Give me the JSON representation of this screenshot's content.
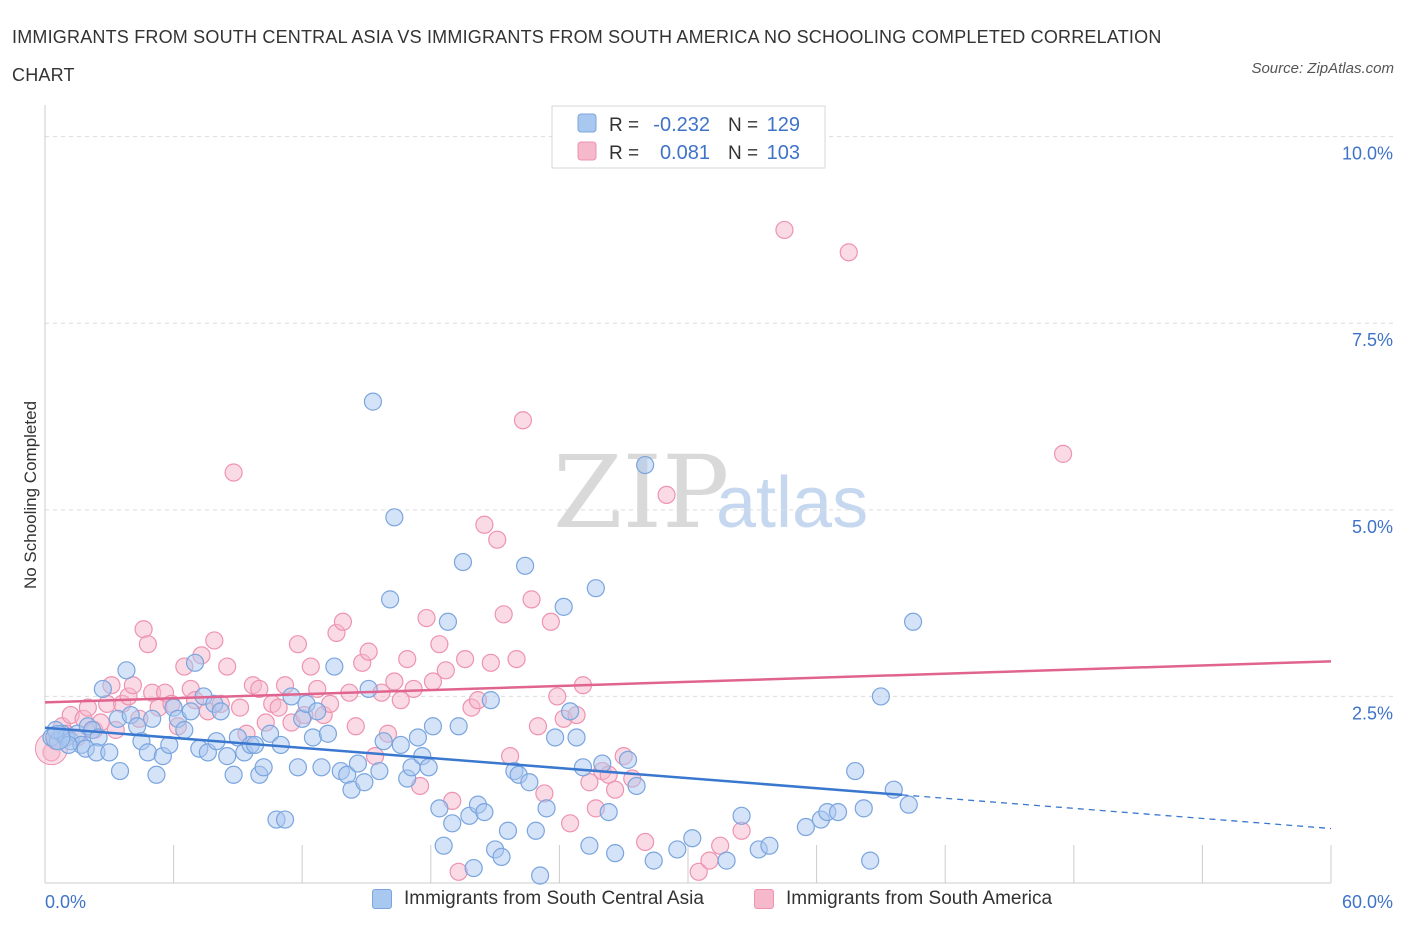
{
  "title": "IMMIGRANTS FROM SOUTH CENTRAL ASIA VS IMMIGRANTS FROM SOUTH AMERICA NO SCHOOLING COMPLETED CORRELATION CHART",
  "source": "Source: ZipAtlas.com",
  "watermark": {
    "zip": "ZIP",
    "atlas": "atlas"
  },
  "colors": {
    "blue_fill": "#a9c8f0",
    "blue_stroke": "#7aa5de",
    "blue_line": "#3a78cf",
    "pink_fill": "#f6b8cb",
    "pink_stroke": "#ee93b0",
    "pink_line": "#e0648f",
    "tick_label": "#3f73c8"
  },
  "legend": {
    "rows": [
      {
        "r_label": "R =",
        "r_value": "-0.232",
        "n_label": "N =",
        "n_value": "129"
      },
      {
        "r_label": "R =",
        "r_value": "0.081",
        "n_label": "N =",
        "n_value": "103"
      }
    ]
  },
  "chart_data": {
    "type": "scatter",
    "title": "IMMIGRANTS FROM SOUTH CENTRAL ASIA VS IMMIGRANTS FROM SOUTH AMERICA NO SCHOOLING COMPLETED CORRELATION CHART",
    "xlabel": "",
    "ylabel": "No Schooling Completed",
    "xlim": [
      0,
      60
    ],
    "ylim": [
      0,
      10.25
    ],
    "x_tick_labels": {
      "min": "0.0%",
      "max": "60.0%"
    },
    "y_ticks": [
      {
        "value": 2.5,
        "label": "2.5%"
      },
      {
        "value": 5.0,
        "label": "5.0%"
      },
      {
        "value": 7.5,
        "label": "7.5%"
      },
      {
        "value": 10.0,
        "label": "10.0%"
      }
    ],
    "grid": true,
    "legend_position": "bottom",
    "series": [
      {
        "name": "Immigrants from South Central Asia",
        "color": "#a9c8f0",
        "R": -0.232,
        "N": 129,
        "trend": {
          "x": [
            0,
            40,
            60
          ],
          "y": [
            2.08,
            1.18,
            0.73
          ],
          "solid_until_x": 40
        },
        "points": [
          [
            0.3,
            1.95
          ],
          [
            0.6,
            1.9
          ],
          [
            0.8,
            2.0
          ],
          [
            1.0,
            1.95
          ],
          [
            1.2,
            1.9
          ],
          [
            1.5,
            2.0
          ],
          [
            1.7,
            1.85
          ],
          [
            2.0,
            2.1
          ],
          [
            2.2,
            2.05
          ],
          [
            2.5,
            1.95
          ],
          [
            0.5,
            2.05
          ],
          [
            1.1,
            1.85
          ],
          [
            1.9,
            1.8
          ],
          [
            2.4,
            1.75
          ],
          [
            2.7,
            2.6
          ],
          [
            3.0,
            1.75
          ],
          [
            3.4,
            2.2
          ],
          [
            3.5,
            1.5
          ],
          [
            3.8,
            2.85
          ],
          [
            4.0,
            2.25
          ],
          [
            4.3,
            2.1
          ],
          [
            4.5,
            1.9
          ],
          [
            4.8,
            1.75
          ],
          [
            5.0,
            2.2
          ],
          [
            5.2,
            1.45
          ],
          [
            5.5,
            1.7
          ],
          [
            5.8,
            1.85
          ],
          [
            6.0,
            2.35
          ],
          [
            6.2,
            2.2
          ],
          [
            6.5,
            2.05
          ],
          [
            6.8,
            2.3
          ],
          [
            7.0,
            2.95
          ],
          [
            7.2,
            1.8
          ],
          [
            7.4,
            2.5
          ],
          [
            7.6,
            1.75
          ],
          [
            7.9,
            2.4
          ],
          [
            8.0,
            1.9
          ],
          [
            8.2,
            2.3
          ],
          [
            8.5,
            1.7
          ],
          [
            8.8,
            1.45
          ],
          [
            9.0,
            1.95
          ],
          [
            9.3,
            1.75
          ],
          [
            9.6,
            1.85
          ],
          [
            9.8,
            1.85
          ],
          [
            10.0,
            1.45
          ],
          [
            10.2,
            1.55
          ],
          [
            10.5,
            2.0
          ],
          [
            10.8,
            0.85
          ],
          [
            11.0,
            1.85
          ],
          [
            11.2,
            0.85
          ],
          [
            11.5,
            2.5
          ],
          [
            11.8,
            1.55
          ],
          [
            12.0,
            2.2
          ],
          [
            12.2,
            2.4
          ],
          [
            12.5,
            1.95
          ],
          [
            12.7,
            2.3
          ],
          [
            12.9,
            1.55
          ],
          [
            13.2,
            2.0
          ],
          [
            13.5,
            2.9
          ],
          [
            13.8,
            1.5
          ],
          [
            14.1,
            1.45
          ],
          [
            14.3,
            1.25
          ],
          [
            14.6,
            1.6
          ],
          [
            14.9,
            1.35
          ],
          [
            15.1,
            2.6
          ],
          [
            15.3,
            6.45
          ],
          [
            15.6,
            1.5
          ],
          [
            15.8,
            1.9
          ],
          [
            16.1,
            3.8
          ],
          [
            16.3,
            4.9
          ],
          [
            16.6,
            1.85
          ],
          [
            16.9,
            1.4
          ],
          [
            17.1,
            1.55
          ],
          [
            17.4,
            1.95
          ],
          [
            17.6,
            1.7
          ],
          [
            17.9,
            1.55
          ],
          [
            18.1,
            2.1
          ],
          [
            18.4,
            1.0
          ],
          [
            18.6,
            0.5
          ],
          [
            18.8,
            3.5
          ],
          [
            19.0,
            0.8
          ],
          [
            19.3,
            2.1
          ],
          [
            19.5,
            4.3
          ],
          [
            19.8,
            0.9
          ],
          [
            20.0,
            0.2
          ],
          [
            20.2,
            1.05
          ],
          [
            20.5,
            0.95
          ],
          [
            20.8,
            2.45
          ],
          [
            21.0,
            0.45
          ],
          [
            21.3,
            0.35
          ],
          [
            21.6,
            0.7
          ],
          [
            21.9,
            1.5
          ],
          [
            22.1,
            1.45
          ],
          [
            22.4,
            4.25
          ],
          [
            22.6,
            1.35
          ],
          [
            22.9,
            0.7
          ],
          [
            23.1,
            0.1
          ],
          [
            23.4,
            1.0
          ],
          [
            23.8,
            1.95
          ],
          [
            24.2,
            3.7
          ],
          [
            24.5,
            2.3
          ],
          [
            24.8,
            1.95
          ],
          [
            25.1,
            1.55
          ],
          [
            25.4,
            0.5
          ],
          [
            25.7,
            3.95
          ],
          [
            26.0,
            1.6
          ],
          [
            26.3,
            0.95
          ],
          [
            26.6,
            0.4
          ],
          [
            27.2,
            1.65
          ],
          [
            27.6,
            1.3
          ],
          [
            28.0,
            5.6
          ],
          [
            28.4,
            0.3
          ],
          [
            29.5,
            0.45
          ],
          [
            30.2,
            0.6
          ],
          [
            31.8,
            0.3
          ],
          [
            32.5,
            0.9
          ],
          [
            33.3,
            0.45
          ],
          [
            33.8,
            0.5
          ],
          [
            35.5,
            0.75
          ],
          [
            36.2,
            0.85
          ],
          [
            36.5,
            0.95
          ],
          [
            38.2,
            1.0
          ],
          [
            40.3,
            1.05
          ],
          [
            39.0,
            2.5
          ],
          [
            40.5,
            3.5
          ],
          [
            37.0,
            0.95
          ],
          [
            38.5,
            0.3
          ],
          [
            37.8,
            1.5
          ],
          [
            39.6,
            1.25
          ]
        ]
      },
      {
        "name": "Immigrants from South America",
        "color": "#f6b8cb",
        "R": 0.081,
        "N": 103,
        "trend": {
          "x": [
            0,
            60
          ],
          "y": [
            2.42,
            2.97
          ]
        },
        "points": [
          [
            0.3,
            1.75
          ],
          [
            0.5,
            1.9
          ],
          [
            0.8,
            2.1
          ],
          [
            1.0,
            2.0
          ],
          [
            1.2,
            2.25
          ],
          [
            1.5,
            1.95
          ],
          [
            1.8,
            2.2
          ],
          [
            2.0,
            2.35
          ],
          [
            2.3,
            2.05
          ],
          [
            2.6,
            2.15
          ],
          [
            2.9,
            2.4
          ],
          [
            3.1,
            2.65
          ],
          [
            3.3,
            2.05
          ],
          [
            3.6,
            2.4
          ],
          [
            3.9,
            2.5
          ],
          [
            4.1,
            2.65
          ],
          [
            4.4,
            2.2
          ],
          [
            4.6,
            3.4
          ],
          [
            4.8,
            3.2
          ],
          [
            5.0,
            2.55
          ],
          [
            5.3,
            2.35
          ],
          [
            5.6,
            2.55
          ],
          [
            5.9,
            2.4
          ],
          [
            6.2,
            2.1
          ],
          [
            6.5,
            2.9
          ],
          [
            6.8,
            2.6
          ],
          [
            7.0,
            2.45
          ],
          [
            7.3,
            3.05
          ],
          [
            7.6,
            2.3
          ],
          [
            7.9,
            3.25
          ],
          [
            8.2,
            2.4
          ],
          [
            8.5,
            2.9
          ],
          [
            8.8,
            5.5
          ],
          [
            9.1,
            2.35
          ],
          [
            9.4,
            2.0
          ],
          [
            9.7,
            2.65
          ],
          [
            10.0,
            2.6
          ],
          [
            10.3,
            2.15
          ],
          [
            10.6,
            2.4
          ],
          [
            10.9,
            2.35
          ],
          [
            11.2,
            2.65
          ],
          [
            11.5,
            2.15
          ],
          [
            11.8,
            3.2
          ],
          [
            12.1,
            2.25
          ],
          [
            12.4,
            2.9
          ],
          [
            12.7,
            2.6
          ],
          [
            13.0,
            2.25
          ],
          [
            13.3,
            2.4
          ],
          [
            13.6,
            3.35
          ],
          [
            13.9,
            3.5
          ],
          [
            14.2,
            2.55
          ],
          [
            14.5,
            2.1
          ],
          [
            14.8,
            2.95
          ],
          [
            15.1,
            3.1
          ],
          [
            15.4,
            1.7
          ],
          [
            15.7,
            2.55
          ],
          [
            16.0,
            2.0
          ],
          [
            16.3,
            2.7
          ],
          [
            16.6,
            2.45
          ],
          [
            16.9,
            3.0
          ],
          [
            17.2,
            2.6
          ],
          [
            17.5,
            1.3
          ],
          [
            17.8,
            3.55
          ],
          [
            18.1,
            2.7
          ],
          [
            18.4,
            3.2
          ],
          [
            18.7,
            2.85
          ],
          [
            19.0,
            1.1
          ],
          [
            19.3,
            0.15
          ],
          [
            19.6,
            3.0
          ],
          [
            19.9,
            2.35
          ],
          [
            20.2,
            2.45
          ],
          [
            20.5,
            4.8
          ],
          [
            20.8,
            2.95
          ],
          [
            21.1,
            4.6
          ],
          [
            21.4,
            3.6
          ],
          [
            21.7,
            1.7
          ],
          [
            22.0,
            3.0
          ],
          [
            22.3,
            6.2
          ],
          [
            22.7,
            3.8
          ],
          [
            23.0,
            2.1
          ],
          [
            23.3,
            1.2
          ],
          [
            23.6,
            3.5
          ],
          [
            23.9,
            2.5
          ],
          [
            24.2,
            2.2
          ],
          [
            24.5,
            0.8
          ],
          [
            24.8,
            2.25
          ],
          [
            25.1,
            2.65
          ],
          [
            25.4,
            1.35
          ],
          [
            25.7,
            1.0
          ],
          [
            26.0,
            1.5
          ],
          [
            26.3,
            1.45
          ],
          [
            26.6,
            1.25
          ],
          [
            27.0,
            1.7
          ],
          [
            27.4,
            1.4
          ],
          [
            28.0,
            0.55
          ],
          [
            29.0,
            5.2
          ],
          [
            30.5,
            0.15
          ],
          [
            31.0,
            0.3
          ],
          [
            31.5,
            0.5
          ],
          [
            32.5,
            0.7
          ],
          [
            34.5,
            8.75
          ],
          [
            37.5,
            8.45
          ],
          [
            47.5,
            5.75
          ]
        ]
      }
    ]
  },
  "bottom_legend": [
    {
      "label": "Immigrants from South Central Asia"
    },
    {
      "label": "Immigrants from South America"
    }
  ]
}
